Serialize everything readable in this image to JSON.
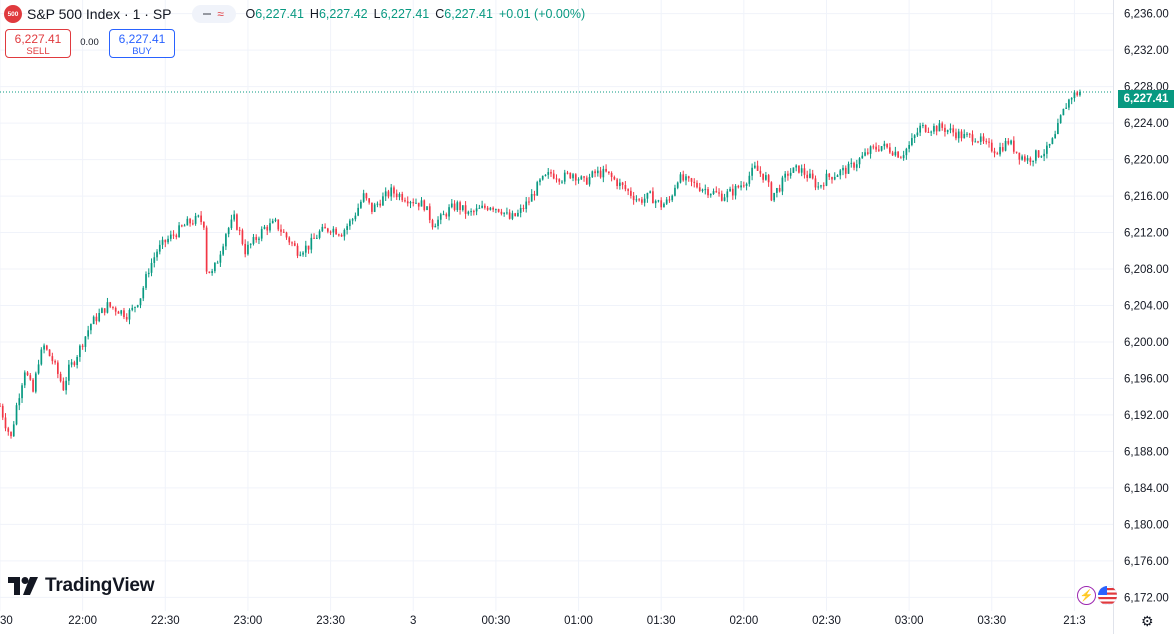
{
  "header": {
    "badge": "500",
    "title": "S&P 500 Index · 1 · SP",
    "ohlc": {
      "o_label": "O",
      "o": "6,227.41",
      "h_label": "H",
      "h": "6,227.42",
      "l_label": "L",
      "l": "6,227.41",
      "c_label": "C",
      "c": "6,227.41",
      "change": "+0.01 (+0.00%)"
    }
  },
  "trade": {
    "sell_price": "6,227.41",
    "sell_label": "SELL",
    "spread": "0.00",
    "buy_price": "6,227.41",
    "buy_label": "BUY"
  },
  "logo_text": "TradingView",
  "last_price_label": "6,227.41",
  "icons": {
    "alert": "bolt-icon",
    "flag": "us-flag-icon",
    "settings": "gear-icon"
  },
  "colors": {
    "up": "#089981",
    "down": "#f23645",
    "sell": "#e03a3e",
    "buy": "#2962ff",
    "price_tag": "#089981"
  },
  "chart_data": {
    "type": "candlestick",
    "title": "S&P 500 Index · 1 · SP",
    "interval": "1 minute",
    "ylim": [
      6170.5,
      6237.5
    ],
    "y_ticks": [
      "6,236.00",
      "6,232.00",
      "6,228.00",
      "6,224.00",
      "6,220.00",
      "6,216.00",
      "6,212.00",
      "6,208.00",
      "6,204.00",
      "6,200.00",
      "6,196.00",
      "6,192.00",
      "6,188.00",
      "6,184.00",
      "6,180.00",
      "6,176.00",
      "6,172.00"
    ],
    "y_tick_values": [
      6236,
      6232,
      6228,
      6224,
      6220,
      6216,
      6212,
      6208,
      6204,
      6200,
      6196,
      6192,
      6188,
      6184,
      6180,
      6176,
      6172
    ],
    "x_ticks": [
      "30",
      "22:00",
      "22:30",
      "23:00",
      "23:30",
      "3",
      "00:30",
      "01:00",
      "01:30",
      "02:00",
      "02:30",
      "03:00",
      "03:30",
      "21:3"
    ],
    "x_tick_minutes": [
      -30,
      0,
      30,
      60,
      90,
      120,
      150,
      180,
      210,
      240,
      270,
      300,
      330,
      360
    ],
    "minutes_visible": [
      -30,
      374
    ],
    "last_price": 6227.41,
    "close_path": [
      {
        "t": -30,
        "v": 6193
      },
      {
        "t": -28,
        "v": 6191
      },
      {
        "t": -26,
        "v": 6189.5
      },
      {
        "t": -24,
        "v": 6193
      },
      {
        "t": -21,
        "v": 6197
      },
      {
        "t": -18,
        "v": 6194.5
      },
      {
        "t": -16,
        "v": 6198
      },
      {
        "t": -14,
        "v": 6199.5
      },
      {
        "t": -11,
        "v": 6198
      },
      {
        "t": -9,
        "v": 6196.5
      },
      {
        "t": -7,
        "v": 6195
      },
      {
        "t": -5,
        "v": 6197
      },
      {
        "t": -3,
        "v": 6198
      },
      {
        "t": 0,
        "v": 6200
      },
      {
        "t": 3,
        "v": 6202
      },
      {
        "t": 6,
        "v": 6203
      },
      {
        "t": 9,
        "v": 6204
      },
      {
        "t": 13,
        "v": 6203.5
      },
      {
        "t": 16,
        "v": 6203
      },
      {
        "t": 18,
        "v": 6203.5
      },
      {
        "t": 21,
        "v": 6205
      },
      {
        "t": 24,
        "v": 6208
      },
      {
        "t": 27,
        "v": 6210
      },
      {
        "t": 30,
        "v": 6211
      },
      {
        "t": 34,
        "v": 6212
      },
      {
        "t": 38,
        "v": 6213
      },
      {
        "t": 42,
        "v": 6213.5
      },
      {
        "t": 44,
        "v": 6213
      },
      {
        "t": 45,
        "v": 6208
      },
      {
        "t": 47,
        "v": 6207.5
      },
      {
        "t": 49,
        "v": 6209
      },
      {
        "t": 52,
        "v": 6212
      },
      {
        "t": 55,
        "v": 6213.5
      },
      {
        "t": 57,
        "v": 6212
      },
      {
        "t": 59,
        "v": 6210
      },
      {
        "t": 62,
        "v": 6211
      },
      {
        "t": 66,
        "v": 6212.5
      },
      {
        "t": 70,
        "v": 6213
      },
      {
        "t": 74,
        "v": 6211.5
      },
      {
        "t": 78,
        "v": 6210
      },
      {
        "t": 82,
        "v": 6210.5
      },
      {
        "t": 86,
        "v": 6212
      },
      {
        "t": 90,
        "v": 6212.5
      },
      {
        "t": 94,
        "v": 6212
      },
      {
        "t": 98,
        "v": 6213.5
      },
      {
        "t": 102,
        "v": 6216
      },
      {
        "t": 105,
        "v": 6214.5
      },
      {
        "t": 108,
        "v": 6215.5
      },
      {
        "t": 112,
        "v": 6216.5
      },
      {
        "t": 116,
        "v": 6216
      },
      {
        "t": 120,
        "v": 6215.5
      },
      {
        "t": 124,
        "v": 6215
      },
      {
        "t": 127,
        "v": 6213
      },
      {
        "t": 130,
        "v": 6213.5
      },
      {
        "t": 133,
        "v": 6214.5
      },
      {
        "t": 136,
        "v": 6215
      },
      {
        "t": 140,
        "v": 6214
      },
      {
        "t": 144,
        "v": 6214.5
      },
      {
        "t": 148,
        "v": 6215
      },
      {
        "t": 152,
        "v": 6214.5
      },
      {
        "t": 155,
        "v": 6213.5
      },
      {
        "t": 158,
        "v": 6214
      },
      {
        "t": 162,
        "v": 6215.5
      },
      {
        "t": 166,
        "v": 6217.5
      },
      {
        "t": 170,
        "v": 6218.5
      },
      {
        "t": 174,
        "v": 6218
      },
      {
        "t": 178,
        "v": 6218.5
      },
      {
        "t": 182,
        "v": 6217.5
      },
      {
        "t": 186,
        "v": 6218.5
      },
      {
        "t": 190,
        "v": 6218.5
      },
      {
        "t": 194,
        "v": 6217.5
      },
      {
        "t": 198,
        "v": 6216.5
      },
      {
        "t": 202,
        "v": 6215.5
      },
      {
        "t": 206,
        "v": 6216
      },
      {
        "t": 210,
        "v": 6215
      },
      {
        "t": 213,
        "v": 6215.5
      },
      {
        "t": 216,
        "v": 6218
      },
      {
        "t": 220,
        "v": 6217.5
      },
      {
        "t": 224,
        "v": 6217
      },
      {
        "t": 228,
        "v": 6216.5
      },
      {
        "t": 232,
        "v": 6216
      },
      {
        "t": 236,
        "v": 6216.5
      },
      {
        "t": 240,
        "v": 6217.5
      },
      {
        "t": 244,
        "v": 6219
      },
      {
        "t": 248,
        "v": 6218
      },
      {
        "t": 250,
        "v": 6216
      },
      {
        "t": 253,
        "v": 6217
      },
      {
        "t": 256,
        "v": 6218.5
      },
      {
        "t": 260,
        "v": 6219
      },
      {
        "t": 264,
        "v": 6218
      },
      {
        "t": 267,
        "v": 6217
      },
      {
        "t": 270,
        "v": 6218
      },
      {
        "t": 274,
        "v": 6218.5
      },
      {
        "t": 278,
        "v": 6219
      },
      {
        "t": 282,
        "v": 6220
      },
      {
        "t": 286,
        "v": 6221
      },
      {
        "t": 290,
        "v": 6221.5
      },
      {
        "t": 294,
        "v": 6221
      },
      {
        "t": 297,
        "v": 6220.5
      },
      {
        "t": 300,
        "v": 6221.5
      },
      {
        "t": 304,
        "v": 6223.5
      },
      {
        "t": 308,
        "v": 6223.5
      },
      {
        "t": 312,
        "v": 6223.5
      },
      {
        "t": 316,
        "v": 6223
      },
      {
        "t": 320,
        "v": 6222.5
      },
      {
        "t": 324,
        "v": 6222.5
      },
      {
        "t": 328,
        "v": 6221.5
      },
      {
        "t": 332,
        "v": 6221
      },
      {
        "t": 336,
        "v": 6222
      },
      {
        "t": 340,
        "v": 6220.5
      },
      {
        "t": 343,
        "v": 6220
      },
      {
        "t": 346,
        "v": 6220.5
      },
      {
        "t": 350,
        "v": 6221
      },
      {
        "t": 353,
        "v": 6222.5
      },
      {
        "t": 355,
        "v": 6224.5
      },
      {
        "t": 357,
        "v": 6226
      },
      {
        "t": 359,
        "v": 6227
      },
      {
        "t": 362,
        "v": 6227.41
      }
    ]
  }
}
